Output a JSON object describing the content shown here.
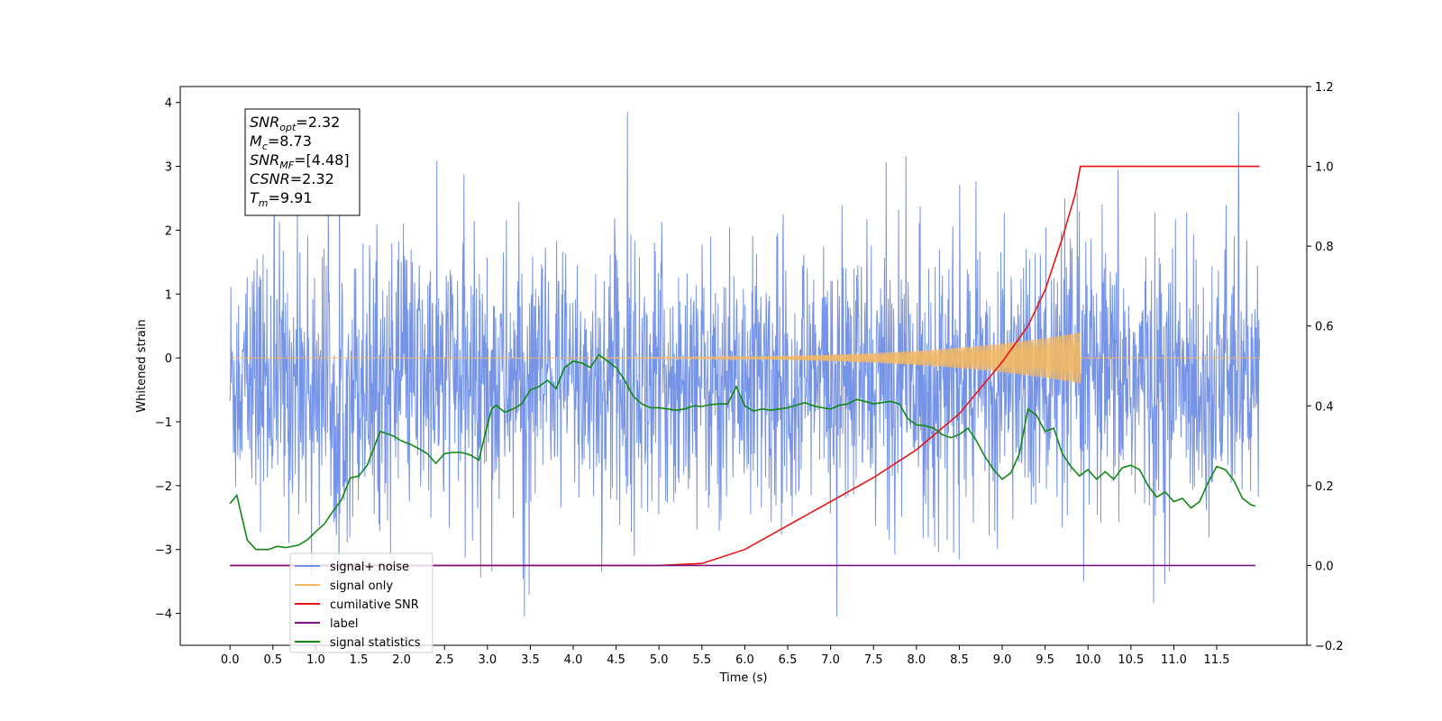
{
  "chart_data": {
    "type": "line",
    "xlabel": "Time (s)",
    "ylabel": "Whitened strain",
    "xlim": [
      -0.58,
      12.55
    ],
    "ylim": [
      -4.5,
      4.25
    ],
    "y2lim": [
      -0.2,
      1.2
    ],
    "x_ticks": [
      "0.0",
      "0.5",
      "1.0",
      "1.5",
      "2.0",
      "2.5",
      "3.0",
      "3.5",
      "4.0",
      "4.5",
      "5.0",
      "5.5",
      "6.0",
      "6.5",
      "7.0",
      "7.5",
      "8.0",
      "8.5",
      "9.0",
      "9.5",
      "10.0",
      "10.5",
      "11.0",
      "11.5"
    ],
    "y_ticks": [
      "4",
      "3",
      "2",
      "1",
      "0",
      "−1",
      "−2",
      "−3",
      "−4"
    ],
    "y2_ticks": [
      "1.2",
      "1.0",
      "0.8",
      "0.6",
      "0.4",
      "0.2",
      "0.0",
      "−0.2"
    ],
    "grid": false,
    "legend_position": "lower-left",
    "annotation": {
      "lines": [
        {
          "sym": "SNR",
          "sub": "opt",
          "value": "=2.32"
        },
        {
          "sym": "M",
          "sub": "c",
          "value": "=8.73"
        },
        {
          "sym": "SNR",
          "sub": "MF",
          "value": "=[4.48]"
        },
        {
          "sym": "CSNR",
          "sub": "",
          "value": "=2.32"
        },
        {
          "sym": "T",
          "sub": "m",
          "value": "=9.91"
        }
      ]
    },
    "series": [
      {
        "name": "signal+ noise",
        "color": "#6f8ee6",
        "axis": "left",
        "kind": "noise",
        "x_range": [
          0.0,
          12.0
        ],
        "envelope": [
          -2.2,
          1.5
        ],
        "extremes": [
          -4.05,
          3.85
        ]
      },
      {
        "name": "signal only",
        "color": "#f4b860",
        "axis": "left",
        "kind": "chirp",
        "x_range": [
          0.0,
          9.91
        ],
        "peak_amplitude": 0.4
      },
      {
        "name": "cumilative SNR",
        "color": "#ee1111",
        "axis": "right",
        "x": [
          0.0,
          5.0,
          5.5,
          6.0,
          6.5,
          7.0,
          7.5,
          8.0,
          8.5,
          9.0,
          9.3,
          9.5,
          9.7,
          9.85,
          9.91,
          12.0
        ],
        "values": [
          0.0,
          0.0,
          0.005,
          0.04,
          0.1,
          0.16,
          0.22,
          0.29,
          0.38,
          0.51,
          0.6,
          0.69,
          0.82,
          0.93,
          1.0,
          1.0
        ]
      },
      {
        "name": "label",
        "color": "#7b147b",
        "axis": "right",
        "x": [
          0.0,
          11.95
        ],
        "values": [
          0.0,
          0.0
        ]
      },
      {
        "name": "signal statistics",
        "color": "#118811",
        "axis": "left",
        "x": [
          0.0,
          0.08,
          0.2,
          0.3,
          0.45,
          0.55,
          0.65,
          0.8,
          0.9,
          1.0,
          1.1,
          1.2,
          1.3,
          1.4,
          1.5,
          1.6,
          1.75,
          1.9,
          2.0,
          2.1,
          2.2,
          2.3,
          2.4,
          2.5,
          2.6,
          2.7,
          2.8,
          2.9,
          3.0,
          3.05,
          3.1,
          3.2,
          3.3,
          3.4,
          3.5,
          3.6,
          3.7,
          3.8,
          3.9,
          4.0,
          4.1,
          4.2,
          4.3,
          4.4,
          4.5,
          4.6,
          4.7,
          4.8,
          4.9,
          5.0,
          5.1,
          5.2,
          5.3,
          5.4,
          5.5,
          5.6,
          5.7,
          5.8,
          5.9,
          6.0,
          6.1,
          6.2,
          6.3,
          6.4,
          6.5,
          6.6,
          6.7,
          6.8,
          6.9,
          7.0,
          7.1,
          7.2,
          7.3,
          7.4,
          7.5,
          7.6,
          7.7,
          7.8,
          7.9,
          8.0,
          8.1,
          8.2,
          8.3,
          8.4,
          8.5,
          8.6,
          8.7,
          8.8,
          8.9,
          9.0,
          9.1,
          9.2,
          9.3,
          9.4,
          9.5,
          9.6,
          9.7,
          9.8,
          9.9,
          10.0,
          10.1,
          10.2,
          10.3,
          10.4,
          10.5,
          10.6,
          10.7,
          10.8,
          10.9,
          11.0,
          11.1,
          11.2,
          11.3,
          11.4,
          11.5,
          11.6,
          11.7,
          11.8,
          11.9,
          11.95
        ],
        "values": [
          -2.28,
          -2.15,
          -2.85,
          -3.0,
          -3.0,
          -2.95,
          -2.97,
          -2.93,
          -2.85,
          -2.72,
          -2.6,
          -2.4,
          -2.22,
          -1.88,
          -1.85,
          -1.68,
          -1.15,
          -1.22,
          -1.3,
          -1.35,
          -1.42,
          -1.5,
          -1.65,
          -1.5,
          -1.48,
          -1.48,
          -1.52,
          -1.6,
          -1.05,
          -0.8,
          -0.74,
          -0.85,
          -0.8,
          -0.72,
          -0.5,
          -0.45,
          -0.35,
          -0.48,
          -0.15,
          -0.05,
          -0.08,
          -0.15,
          0.05,
          -0.05,
          -0.15,
          -0.35,
          -0.6,
          -0.72,
          -0.78,
          -0.78,
          -0.8,
          -0.82,
          -0.8,
          -0.75,
          -0.76,
          -0.73,
          -0.72,
          -0.72,
          -0.45,
          -0.75,
          -0.83,
          -0.8,
          -0.82,
          -0.8,
          -0.78,
          -0.74,
          -0.7,
          -0.75,
          -0.78,
          -0.8,
          -0.74,
          -0.72,
          -0.65,
          -0.68,
          -0.72,
          -0.7,
          -0.68,
          -0.72,
          -0.95,
          -1.05,
          -1.06,
          -1.1,
          -1.2,
          -1.25,
          -1.2,
          -1.1,
          -1.3,
          -1.55,
          -1.75,
          -1.9,
          -1.8,
          -1.5,
          -0.8,
          -0.9,
          -1.15,
          -1.1,
          -1.5,
          -1.7,
          -1.85,
          -1.75,
          -1.9,
          -1.78,
          -1.9,
          -1.72,
          -1.68,
          -1.75,
          -2.0,
          -2.18,
          -2.1,
          -2.25,
          -2.2,
          -2.35,
          -2.25,
          -1.95,
          -1.7,
          -1.75,
          -1.92,
          -2.2,
          -2.3,
          -2.32
        ]
      }
    ]
  }
}
